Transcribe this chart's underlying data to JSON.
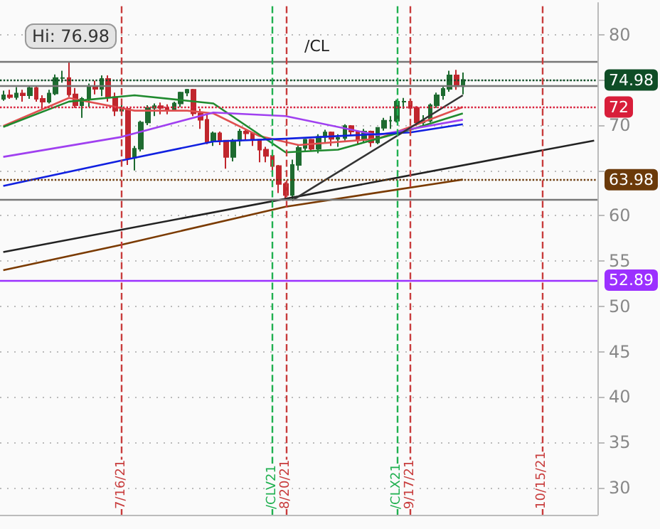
{
  "chart_data": {
    "type": "candlestick",
    "categories": [
      null,
      null,
      null,
      null,
      null,
      null,
      null,
      null,
      null,
      null,
      null,
      null,
      null,
      null,
      null,
      null,
      null,
      null,
      "7/16/21",
      null,
      null,
      null,
      null,
      null,
      null,
      null,
      null,
      null,
      null,
      null,
      null,
      null,
      null,
      null,
      null,
      null,
      null,
      null,
      null,
      null,
      null,
      "/CLV21",
      null,
      "8/20/21",
      null,
      null,
      null,
      null,
      null,
      null,
      null,
      null,
      null,
      null,
      null,
      null,
      null,
      null,
      null,
      null,
      "/CLX21",
      null,
      "9/17/21",
      null,
      null,
      null,
      null,
      null,
      null,
      null,
      null,
      null,
      null,
      null,
      null,
      null,
      null,
      null,
      null,
      null,
      null,
      null,
      "10/15/21",
      null,
      null,
      null,
      null,
      null,
      null,
      null,
      null
    ],
    "ylim": [
      27,
      83.5
    ],
    "yticks": [
      30,
      35,
      40,
      45,
      50,
      55,
      60,
      {
        "value": 65,
        "label": null
      },
      70,
      {
        "value": 75,
        "label": null
      },
      80
    ],
    "grid": "y",
    "marker": "none",
    "series": [
      {
        "ohlc": [
          [
            72.9,
            73.8,
            72.7,
            73.3
          ],
          [
            73.3,
            73.9,
            72.9,
            73.1
          ],
          [
            73.1,
            74.2,
            72.8,
            73.5
          ],
          [
            73.5,
            73.9,
            72.6,
            73.3
          ],
          [
            73.3,
            74.4,
            72.9,
            74.1
          ],
          [
            74.1,
            74.4,
            72.6,
            72.9
          ],
          [
            72.9,
            73.3,
            71.8,
            72.6
          ],
          [
            72.6,
            73.9,
            72.4,
            73.5
          ],
          [
            73.5,
            75.6,
            73.3,
            75.2
          ],
          [
            75.2,
            76.0,
            74.7,
            75.2
          ],
          [
            75.2,
            76.98,
            73.1,
            73.4
          ],
          [
            73.4,
            74.1,
            71.9,
            72.2
          ],
          [
            72.2,
            73.1,
            70.8,
            72.9
          ],
          [
            72.9,
            74.6,
            72.0,
            74.3
          ],
          [
            74.3,
            74.9,
            73.4,
            74.0
          ],
          [
            74.0,
            75.5,
            73.2,
            75.1
          ],
          [
            75.1,
            75.5,
            72.6,
            73.1
          ],
          [
            73.1,
            73.6,
            71.0,
            71.6
          ],
          [
            71.6,
            72.2,
            71.0,
            71.8
          ],
          [
            71.8,
            72.0,
            65.6,
            66.4
          ],
          [
            66.4,
            67.7,
            65.0,
            67.4
          ],
          [
            67.4,
            70.5,
            67.1,
            70.3
          ],
          [
            70.3,
            72.2,
            70.0,
            71.9
          ],
          [
            71.9,
            72.4,
            71.0,
            72.1
          ],
          [
            72.1,
            72.5,
            71.2,
            71.9
          ],
          [
            71.9,
            72.3,
            71.2,
            71.7
          ],
          [
            71.7,
            72.6,
            71.6,
            72.4
          ],
          [
            72.4,
            73.7,
            72.0,
            73.6
          ],
          [
            73.6,
            74.0,
            73.2,
            73.9
          ],
          [
            73.9,
            74.0,
            71.0,
            71.3
          ],
          [
            71.3,
            71.8,
            69.6,
            70.6
          ],
          [
            70.6,
            71.2,
            67.9,
            68.2
          ],
          [
            68.2,
            69.3,
            67.7,
            69.1
          ],
          [
            69.1,
            69.3,
            67.8,
            68.3
          ],
          [
            68.3,
            68.3,
            65.2,
            66.5
          ],
          [
            66.5,
            68.5,
            66.0,
            68.3
          ],
          [
            68.3,
            69.6,
            67.7,
            69.3
          ],
          [
            69.3,
            69.6,
            68.4,
            69.1
          ],
          [
            69.1,
            69.2,
            67.7,
            68.4
          ],
          [
            68.4,
            68.4,
            65.9,
            67.3
          ],
          [
            67.3,
            67.6,
            65.9,
            66.6
          ],
          [
            66.6,
            67.0,
            64.9,
            65.5
          ],
          [
            65.5,
            65.6,
            62.5,
            63.5
          ],
          [
            63.5,
            63.7,
            61.9,
            62.3
          ],
          [
            62.3,
            66.2,
            61.7,
            65.6
          ],
          [
            65.6,
            67.8,
            65.0,
            67.5
          ],
          [
            67.5,
            68.5,
            67.1,
            68.4
          ],
          [
            68.4,
            68.5,
            67.1,
            67.4
          ],
          [
            67.4,
            69.0,
            66.9,
            68.7
          ],
          [
            68.7,
            69.5,
            68.0,
            69.2
          ],
          [
            69.2,
            69.3,
            67.7,
            68.5
          ],
          [
            68.5,
            69.0,
            67.6,
            68.6
          ],
          [
            68.6,
            70.1,
            68.3,
            69.9
          ],
          [
            69.9,
            70.0,
            68.8,
            69.3
          ],
          [
            69.3,
            69.4,
            67.8,
            68.4
          ],
          [
            68.4,
            69.6,
            68.1,
            69.3
          ],
          [
            69.3,
            69.4,
            67.6,
            68.1
          ],
          [
            68.1,
            69.7,
            67.9,
            69.7
          ],
          [
            69.7,
            70.8,
            69.4,
            70.5
          ],
          [
            70.5,
            71.0,
            69.6,
            70.5
          ],
          [
            70.5,
            72.8,
            70.3,
            72.6
          ],
          [
            72.6,
            73.0,
            71.8,
            72.6
          ],
          [
            72.6,
            72.8,
            71.6,
            71.9
          ],
          [
            71.9,
            72.1,
            69.9,
            70.3
          ],
          [
            70.3,
            71.1,
            69.9,
            70.5
          ],
          [
            70.5,
            72.4,
            70.3,
            72.2
          ],
          [
            72.2,
            73.6,
            71.9,
            73.3
          ],
          [
            73.3,
            74.4,
            72.8,
            74.0
          ],
          [
            74.0,
            76.0,
            73.7,
            75.5
          ],
          [
            75.5,
            76.1,
            73.9,
            74.3
          ],
          [
            74.3,
            75.8,
            73.4,
            74.98
          ],
          null,
          null,
          null,
          null,
          null,
          null,
          null,
          null,
          null,
          null,
          null,
          null,
          null,
          null,
          null,
          null,
          null,
          null,
          null,
          null
        ],
        "colors": [
          "#1e6b30",
          "#c0262d",
          "#1e6b30",
          "#c0262d",
          "#1e6b30",
          "#c0262d",
          "#c0262d",
          "#1e6b30",
          "#1e6b30",
          "#1e6b30",
          "#c0262d",
          "#c0262d",
          "#1e6b30",
          "#1e6b30",
          "#c0262d",
          "#1e6b30",
          "#c0262d",
          "#c0262d",
          "#1e6b30",
          "#c0262d",
          "#1e6b30",
          "#1e6b30",
          "#1e6b30",
          "#1e6b30",
          "#c0262d",
          "#c0262d",
          "#1e6b30",
          "#1e6b30",
          "#1e6b30",
          "#c0262d",
          "#c0262d",
          "#c0262d",
          "#1e6b30",
          "#c0262d",
          "#c0262d",
          "#1e6b30",
          "#1e6b30",
          "#c0262d",
          "#c0262d",
          "#c0262d",
          "#c0262d",
          "#c0262d",
          "#c0262d",
          "#c0262d",
          "#1e6b30",
          "#1e6b30",
          "#1e6b30",
          "#c0262d",
          "#1e6b30",
          "#1e6b30",
          "#c0262d",
          "#1e6b30",
          "#1e6b30",
          "#c0262d",
          "#c0262d",
          "#1e6b30",
          "#c0262d",
          "#1e6b30",
          "#1e6b30",
          "#1e6b30",
          "#1e6b30",
          "#1e6b30",
          "#c0262d",
          "#c0262d",
          "#1e6b30",
          "#1e6b30",
          "#1e6b30",
          "#1e6b30",
          "#1e6b30",
          "#c0262d",
          "#1e6b30",
          null,
          null,
          null,
          null,
          null,
          null,
          null,
          null,
          null,
          null,
          null,
          null,
          null,
          null,
          null,
          null,
          null,
          null,
          null,
          null
        ]
      },
      {
        "type": "line",
        "color": "#e05050",
        "values": [
          69.9,
          null,
          null,
          null,
          null,
          null,
          null,
          null,
          null,
          null,
          73.0,
          null,
          null,
          null,
          null,
          null,
          null,
          null,
          null,
          null,
          71.6,
          null,
          null,
          null,
          null,
          null,
          null,
          null,
          71.6,
          null,
          null,
          null,
          71.3,
          null,
          null,
          null,
          null,
          null,
          null,
          68.8,
          null,
          null,
          null,
          null,
          null,
          67.8,
          null,
          null,
          null,
          null,
          null,
          null,
          null,
          null,
          null,
          null,
          null,
          68.5,
          null,
          null,
          null,
          null,
          69.8,
          null,
          null,
          null,
          null,
          null,
          null,
          null,
          72.0,
          null,
          null,
          null,
          null,
          null,
          null,
          null,
          null,
          null,
          null,
          null,
          null,
          null,
          null,
          null,
          null,
          null,
          null,
          null,
          null
        ]
      },
      {
        "type": "line",
        "color": "#1f8a2e",
        "values": [
          69.8,
          null,
          null,
          null,
          null,
          null,
          null,
          null,
          null,
          null,
          72.6,
          null,
          null,
          null,
          null,
          null,
          null,
          null,
          null,
          null,
          73.3,
          null,
          null,
          null,
          null,
          null,
          null,
          null,
          null,
          null,
          null,
          null,
          72.4,
          null,
          null,
          null,
          null,
          null,
          null,
          null,
          null,
          null,
          null,
          67.0,
          null,
          null,
          null,
          null,
          null,
          null,
          null,
          67.3,
          null,
          null,
          null,
          null,
          null,
          null,
          null,
          null,
          null,
          null,
          69.5,
          null,
          null,
          null,
          null,
          null,
          null,
          null,
          71.3,
          null,
          null,
          null,
          null,
          null,
          null,
          null,
          null,
          null,
          null,
          null,
          null,
          null,
          null,
          null,
          null,
          null,
          null,
          null,
          null
        ]
      },
      {
        "type": "line",
        "color": "#a040f0",
        "values": [
          66.5,
          null,
          null,
          null,
          null,
          null,
          null,
          null,
          null,
          null,
          null,
          null,
          null,
          null,
          null,
          null,
          null,
          null,
          68.7,
          null,
          null,
          null,
          null,
          null,
          null,
          null,
          null,
          null,
          null,
          null,
          null,
          null,
          71.4,
          null,
          null,
          null,
          null,
          null,
          null,
          null,
          null,
          null,
          null,
          71.0,
          null,
          null,
          null,
          null,
          null,
          null,
          null,
          null,
          null,
          null,
          null,
          null,
          null,
          68.9,
          null,
          null,
          null,
          null,
          null,
          null,
          null,
          null,
          null,
          null,
          null,
          null,
          70.6,
          null,
          null,
          null,
          null,
          null,
          null,
          null,
          null,
          null,
          null,
          null,
          null,
          null,
          null,
          null,
          null,
          null,
          null,
          null,
          null
        ]
      },
      {
        "type": "line",
        "color": "#1020e0",
        "values": [
          63.3,
          null,
          null,
          null,
          null,
          null,
          null,
          null,
          null,
          null,
          null,
          null,
          null,
          null,
          null,
          null,
          null,
          null,
          66.1,
          null,
          null,
          null,
          null,
          null,
          null,
          null,
          null,
          null,
          null,
          null,
          null,
          null,
          68.2,
          null,
          null,
          null,
          null,
          null,
          null,
          null,
          null,
          null,
          null,
          68.5,
          null,
          null,
          null,
          null,
          null,
          null,
          null,
          null,
          null,
          null,
          null,
          null,
          null,
          null,
          null,
          null,
          null,
          null,
          69.2,
          null,
          null,
          null,
          null,
          null,
          null,
          null,
          70.1,
          null,
          null,
          null,
          null,
          null,
          null,
          null,
          null,
          null,
          null,
          null,
          null,
          null,
          null,
          null,
          null,
          null,
          null,
          null,
          null
        ]
      },
      {
        "type": "line",
        "color": "#7a3a00",
        "values": [
          54.0,
          null,
          null,
          null,
          null,
          null,
          null,
          null,
          null,
          null,
          null,
          null,
          null,
          null,
          null,
          null,
          null,
          null,
          56.8,
          null,
          null,
          null,
          null,
          null,
          null,
          null,
          null,
          null,
          null,
          null,
          null,
          null,
          null,
          null,
          null,
          null,
          null,
          null,
          null,
          null,
          null,
          null,
          null,
          61.0,
          null,
          null,
          null,
          null,
          null,
          null,
          null,
          null,
          null,
          null,
          null,
          null,
          null,
          null,
          null,
          null,
          null,
          null,
          null,
          null,
          null,
          null,
          null,
          null,
          null,
          null,
          64.0,
          null,
          null,
          null,
          null,
          null,
          null,
          null,
          null,
          null,
          null,
          null,
          null,
          null,
          null,
          null,
          null,
          null,
          null,
          null,
          null
        ]
      },
      {
        "type": "line",
        "color": "#222222",
        "values": [
          56.0,
          null,
          null,
          null,
          null,
          null,
          null,
          null,
          null,
          null,
          null,
          null,
          null,
          null,
          null,
          null,
          null,
          null,
          null,
          null,
          null,
          null,
          null,
          null,
          null,
          null,
          null,
          null,
          null,
          null,
          null,
          null,
          null,
          null,
          null,
          null,
          null,
          null,
          null,
          null,
          null,
          null,
          null,
          null,
          null,
          null,
          null,
          null,
          null,
          null,
          null,
          null,
          null,
          null,
          null,
          null,
          null,
          null,
          null,
          null,
          null,
          null,
          null,
          null,
          null,
          null,
          null,
          null,
          null,
          null,
          null,
          null,
          null,
          null,
          null,
          null,
          null,
          null,
          null,
          null,
          null,
          null,
          null,
          null,
          null,
          null,
          null,
          null,
          null,
          null,
          68.3
        ]
      },
      {
        "type": "line",
        "color": "#333333",
        "values": [
          null,
          null,
          null,
          null,
          null,
          null,
          null,
          null,
          null,
          null,
          null,
          null,
          null,
          null,
          null,
          null,
          null,
          null,
          null,
          null,
          null,
          null,
          null,
          null,
          null,
          null,
          null,
          null,
          null,
          null,
          null,
          null,
          null,
          null,
          null,
          null,
          null,
          null,
          null,
          null,
          null,
          null,
          null,
          null,
          61.7,
          null,
          null,
          null,
          null,
          null,
          null,
          null,
          null,
          null,
          null,
          null,
          null,
          null,
          null,
          null,
          null,
          null,
          null,
          null,
          null,
          null,
          null,
          null,
          null,
          null,
          73.3,
          null,
          null,
          null,
          null,
          null,
          null,
          null,
          null,
          null,
          null,
          null,
          null,
          null,
          null,
          null,
          null,
          null,
          null,
          null,
          null
        ]
      }
    ],
    "ref_lines": [
      {
        "axis": "y",
        "value": 76.98,
        "label": null,
        "color": "#777777",
        "line_style": "solid"
      },
      {
        "axis": "y",
        "value": 74.3,
        "label": null,
        "color": "#777777",
        "line_style": "solid"
      },
      {
        "axis": "y",
        "value": 61.8,
        "label": null,
        "color": "#777777",
        "line_style": "solid"
      },
      {
        "axis": "y",
        "value": 74.98,
        "label": "74.98",
        "color": "#0f4d26",
        "line_style": "dotted"
      },
      {
        "axis": "y",
        "value": 72,
        "label": "72",
        "color": "#d81e3a",
        "line_style": "dotted"
      },
      {
        "axis": "y",
        "value": 63.98,
        "label": "63.98",
        "color": "#6b3a0a",
        "line_style": "dotted"
      },
      {
        "axis": "y",
        "value": 52.89,
        "label": "52.89",
        "color": "#9b30ff",
        "line_style": "solid"
      },
      {
        "axis": "x",
        "value": "7/16/21",
        "label": null,
        "color": "#c83c3c",
        "line_style": "dashed"
      },
      {
        "axis": "x",
        "value": "/CLV21",
        "label": null,
        "color": "#20b050",
        "line_style": "dashed"
      },
      {
        "axis": "x",
        "value": "8/20/21",
        "label": null,
        "color": "#c83c3c",
        "line_style": "dashed"
      },
      {
        "axis": "x",
        "value": "/CLX21",
        "label": null,
        "color": "#20b050",
        "line_style": "dashed"
      },
      {
        "axis": "x",
        "value": "9/17/21",
        "label": null,
        "color": "#c83c3c",
        "line_style": "dashed"
      },
      {
        "axis": "x",
        "value": "10/15/21",
        "label": null,
        "color": "#c83c3c",
        "line_style": "dashed"
      }
    ],
    "annotations": [
      "Hi: 76.98",
      "/CL"
    ]
  }
}
